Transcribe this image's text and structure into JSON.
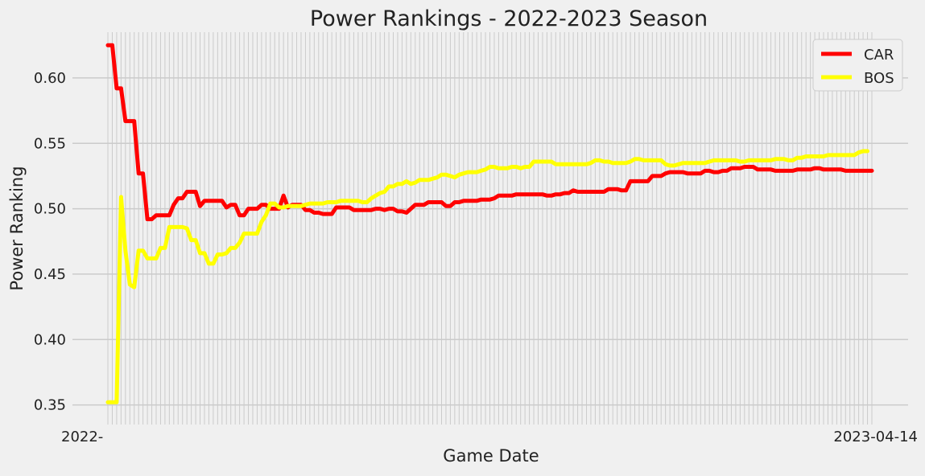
{
  "chart_data": {
    "type": "line",
    "title": "Power Rankings - 2022-2023 Season",
    "xlabel": "Game Date",
    "ylabel": "Power Ranking",
    "ylim": [
      0.335,
      0.635
    ],
    "y_ticks": [
      0.35,
      0.4,
      0.45,
      0.5,
      0.55,
      0.6
    ],
    "y_tick_labels": [
      "0.35",
      "0.40",
      "0.45",
      "0.50",
      "0.55",
      "0.60"
    ],
    "x_tick_labels_note": "Dense, overlapping game-date tick labels (illegible)",
    "x_tick_left_fragment": "2022-",
    "x_tick_right_fragment": "2023-04-14",
    "grid": true,
    "legend_position": "top-right",
    "colors": {
      "background": "#f0f0f0",
      "grid": "#cbcbcb"
    },
    "series": [
      {
        "name": "CAR",
        "color": "#ff0000",
        "values": [
          0.625,
          0.625,
          0.592,
          0.592,
          0.567,
          0.567,
          0.567,
          0.527,
          0.527,
          0.492,
          0.492,
          0.495,
          0.495,
          0.495,
          0.495,
          0.503,
          0.508,
          0.508,
          0.513,
          0.513,
          0.513,
          0.502,
          0.506,
          0.506,
          0.506,
          0.506,
          0.506,
          0.501,
          0.503,
          0.503,
          0.495,
          0.495,
          0.5,
          0.5,
          0.5,
          0.503,
          0.503,
          0.5,
          0.5,
          0.5,
          0.51,
          0.501,
          0.503,
          0.503,
          0.503,
          0.499,
          0.499,
          0.497,
          0.497,
          0.496,
          0.496,
          0.496,
          0.501,
          0.501,
          0.501,
          0.501,
          0.499,
          0.499,
          0.499,
          0.499,
          0.499,
          0.5,
          0.5,
          0.499,
          0.5,
          0.5,
          0.498,
          0.498,
          0.497,
          0.5,
          0.503,
          0.503,
          0.503,
          0.505,
          0.505,
          0.505,
          0.505,
          0.502,
          0.502,
          0.505,
          0.505,
          0.506,
          0.506,
          0.506,
          0.506,
          0.507,
          0.507,
          0.507,
          0.508,
          0.51,
          0.51,
          0.51,
          0.51,
          0.511,
          0.511,
          0.511,
          0.511,
          0.511,
          0.511,
          0.511,
          0.51,
          0.51,
          0.511,
          0.511,
          0.512,
          0.512,
          0.514,
          0.513,
          0.513,
          0.513,
          0.513,
          0.513,
          0.513,
          0.513,
          0.515,
          0.515,
          0.515,
          0.514,
          0.514,
          0.521,
          0.521,
          0.521,
          0.521,
          0.521,
          0.525,
          0.525,
          0.525,
          0.527,
          0.528,
          0.528,
          0.528,
          0.528,
          0.527,
          0.527,
          0.527,
          0.527,
          0.529,
          0.529,
          0.528,
          0.528,
          0.529,
          0.529,
          0.531,
          0.531,
          0.531,
          0.532,
          0.532,
          0.532,
          0.53,
          0.53,
          0.53,
          0.53,
          0.529,
          0.529,
          0.529,
          0.529,
          0.529,
          0.53,
          0.53,
          0.53,
          0.53,
          0.531,
          0.531,
          0.53,
          0.53,
          0.53,
          0.53,
          0.53,
          0.529,
          0.529,
          0.529,
          0.529,
          0.529,
          0.529,
          0.529
        ]
      },
      {
        "name": "BOS",
        "color": "#ffff00",
        "values": [
          0.352,
          0.352,
          0.352,
          0.509,
          0.468,
          0.442,
          0.44,
          0.468,
          0.468,
          0.462,
          0.462,
          0.462,
          0.47,
          0.47,
          0.486,
          0.486,
          0.486,
          0.486,
          0.485,
          0.476,
          0.476,
          0.466,
          0.466,
          0.458,
          0.458,
          0.465,
          0.465,
          0.466,
          0.47,
          0.47,
          0.474,
          0.481,
          0.481,
          0.481,
          0.481,
          0.49,
          0.495,
          0.504,
          0.504,
          0.501,
          0.501,
          0.502,
          0.502,
          0.502,
          0.502,
          0.503,
          0.504,
          0.504,
          0.504,
          0.504,
          0.505,
          0.505,
          0.505,
          0.506,
          0.506,
          0.506,
          0.506,
          0.506,
          0.505,
          0.505,
          0.508,
          0.51,
          0.512,
          0.513,
          0.517,
          0.517,
          0.519,
          0.519,
          0.521,
          0.519,
          0.52,
          0.522,
          0.522,
          0.522,
          0.523,
          0.524,
          0.526,
          0.526,
          0.525,
          0.524,
          0.526,
          0.527,
          0.528,
          0.528,
          0.528,
          0.529,
          0.53,
          0.532,
          0.532,
          0.531,
          0.531,
          0.531,
          0.532,
          0.532,
          0.531,
          0.532,
          0.532,
          0.536,
          0.536,
          0.536,
          0.536,
          0.536,
          0.534,
          0.534,
          0.534,
          0.534,
          0.534,
          0.534,
          0.534,
          0.534,
          0.535,
          0.537,
          0.537,
          0.536,
          0.536,
          0.535,
          0.535,
          0.535,
          0.535,
          0.536,
          0.538,
          0.538,
          0.537,
          0.537,
          0.537,
          0.537,
          0.537,
          0.534,
          0.533,
          0.533,
          0.534,
          0.535,
          0.535,
          0.535,
          0.535,
          0.535,
          0.535,
          0.536,
          0.537,
          0.537,
          0.537,
          0.537,
          0.537,
          0.537,
          0.536,
          0.536,
          0.537,
          0.537,
          0.537,
          0.537,
          0.537,
          0.537,
          0.538,
          0.538,
          0.538,
          0.537,
          0.537,
          0.539,
          0.539,
          0.54,
          0.54,
          0.54,
          0.54,
          0.54,
          0.541,
          0.541,
          0.541,
          0.541,
          0.541,
          0.541,
          0.541,
          0.543,
          0.544,
          0.544
        ]
      }
    ]
  }
}
